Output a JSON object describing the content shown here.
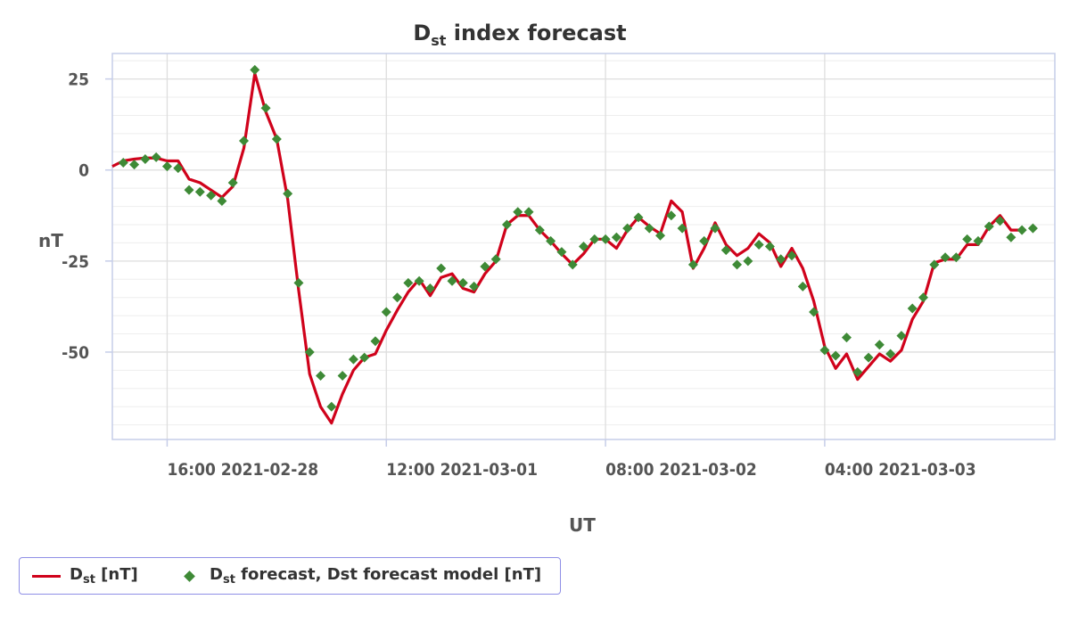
{
  "chart_data": {
    "type": "line",
    "title": {
      "main": "D",
      "sub": "st",
      "rest": " index forecast"
    },
    "xlabel": "UT",
    "ylabel": "nT",
    "x_range_hours": [
      0,
      86
    ],
    "ylim": [
      -74,
      32
    ],
    "y_ticks": [
      25,
      0,
      -25,
      -50
    ],
    "x_ticks": [
      {
        "hour": 5,
        "label": "16:00 2021-02-28"
      },
      {
        "hour": 25,
        "label": "12:00 2021-03-01"
      },
      {
        "hour": 45,
        "label": "08:00 2021-03-02"
      },
      {
        "hour": 65,
        "label": "04:00 2021-03-03"
      }
    ],
    "grid": true,
    "legend_position": "bottom-left",
    "series": [
      {
        "name_main": "D",
        "name_sub": "st",
        "name_rest": " [nT]",
        "color": "#d0021b",
        "style": "line",
        "values": [
          1,
          2.5,
          3,
          3.3,
          3.3,
          2.5,
          2.5,
          -2.5,
          -3.5,
          -5.5,
          -7.5,
          -4.5,
          6,
          26.5,
          16,
          8.5,
          -8,
          -33,
          -56,
          -65,
          -69.5,
          -61.5,
          -55,
          -51.5,
          -50.5,
          -44,
          -38.5,
          -33.5,
          -30,
          -34.5,
          -29.5,
          -28.5,
          -32.5,
          -33.5,
          -28.5,
          -25,
          -15,
          -12.5,
          -12.5,
          -16.5,
          -19.5,
          -23,
          -26,
          -23,
          -19,
          -19,
          -21.5,
          -16.5,
          -13,
          -15.5,
          -17.5,
          -8.5,
          -11.5,
          -27,
          -21.5,
          -14.5,
          -20.5,
          -23.5,
          -21.5,
          -17.5,
          -20,
          -26.5,
          -21.5,
          -27,
          -36,
          -48.5,
          -54.5,
          -50.5,
          -57.5,
          -54,
          -50.5,
          -52.5,
          -49.5,
          -41,
          -36,
          -25.5,
          -24.5,
          -24.5,
          -20.5,
          -20.5,
          -15.5,
          -12.5,
          -16.5,
          -16.5
        ]
      },
      {
        "name_main": "D",
        "name_sub": "st",
        "name_rest": " forecast, Dst forecast model [nT]",
        "color": "#3e8a36",
        "style": "diamond",
        "values": [
          2,
          1.5,
          3,
          3.5,
          1,
          0.5,
          -5.5,
          -6,
          -7,
          -8.5,
          -3.5,
          8,
          27.5,
          17,
          8.5,
          -6.5,
          -31,
          -50,
          -56.5,
          -65,
          -56.5,
          -52,
          -51.5,
          -47,
          -39,
          -35,
          -31,
          -30.5,
          -32.5,
          -27,
          -30.5,
          -31,
          -32,
          -26.5,
          -24.5,
          -15,
          -11.5,
          -11.5,
          -16.5,
          -19.5,
          -22.5,
          -26,
          -21,
          -19,
          -19,
          -18.5,
          -16,
          -13,
          -16,
          -18,
          -12.5,
          -16,
          -26,
          -19.5,
          -16,
          -22,
          -26,
          -25,
          -20.5,
          -21,
          -24.5,
          -23.5,
          -32,
          -39,
          -49.5,
          -51,
          -46,
          -55.5,
          -51.5,
          -48,
          -50.5,
          -45.5,
          -38,
          -35,
          -26,
          -24,
          -24,
          -19,
          -19.5,
          -15.5,
          -14,
          -18.5,
          -16.5,
          -16
        ]
      }
    ]
  }
}
